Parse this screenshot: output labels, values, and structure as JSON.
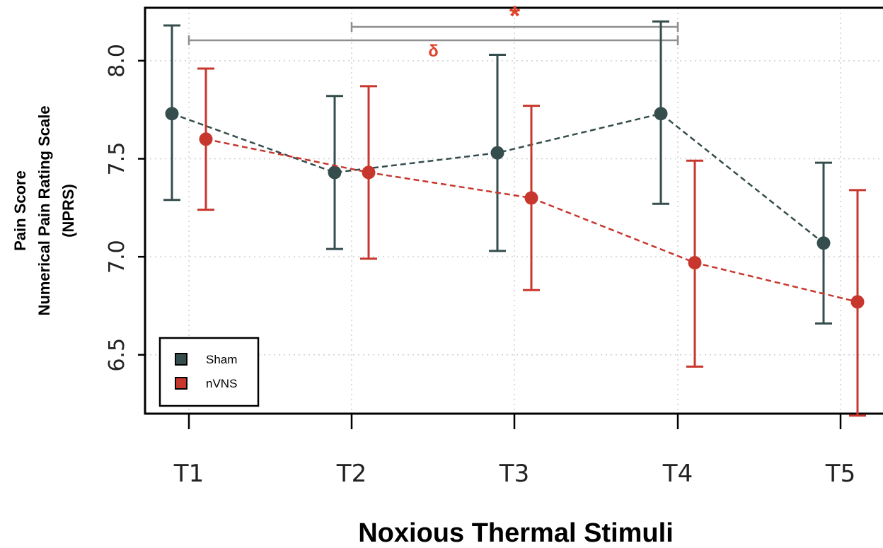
{
  "chart_data": {
    "type": "line",
    "xlabel": "Noxious Thermal Stimuli",
    "ylabel_lines": [
      "Pain Score",
      "Numerical Pain Rating Scale",
      "(NPRS)"
    ],
    "categories": [
      "T1",
      "T2",
      "T3",
      "T4",
      "T5"
    ],
    "ylim": [
      6.2,
      8.27
    ],
    "yticks": [
      6.5,
      7.0,
      7.5,
      8.0
    ],
    "ytick_labels": [
      "6.5",
      "7.0",
      "7.5",
      "8.0"
    ],
    "grid": true,
    "legend_position": "bottom-left",
    "series": [
      {
        "name": "Sham",
        "color": "#354d4d",
        "values": [
          7.73,
          7.43,
          7.53,
          7.73,
          7.07
        ],
        "lower": [
          7.29,
          7.04,
          7.03,
          7.27,
          6.66
        ],
        "upper": [
          8.18,
          7.82,
          8.03,
          8.2,
          7.48
        ]
      },
      {
        "name": "nVNS",
        "color": "#c8372d",
        "values": [
          7.6,
          7.43,
          7.3,
          6.97,
          6.77
        ],
        "lower": [
          7.24,
          6.99,
          6.83,
          6.44,
          6.19
        ],
        "upper": [
          7.96,
          7.87,
          7.77,
          7.49,
          7.34
        ]
      }
    ],
    "annotations": [
      {
        "label": "*",
        "from": "T2",
        "to": "T4"
      },
      {
        "label": "δ",
        "from": "T1",
        "to": "T4"
      }
    ]
  }
}
